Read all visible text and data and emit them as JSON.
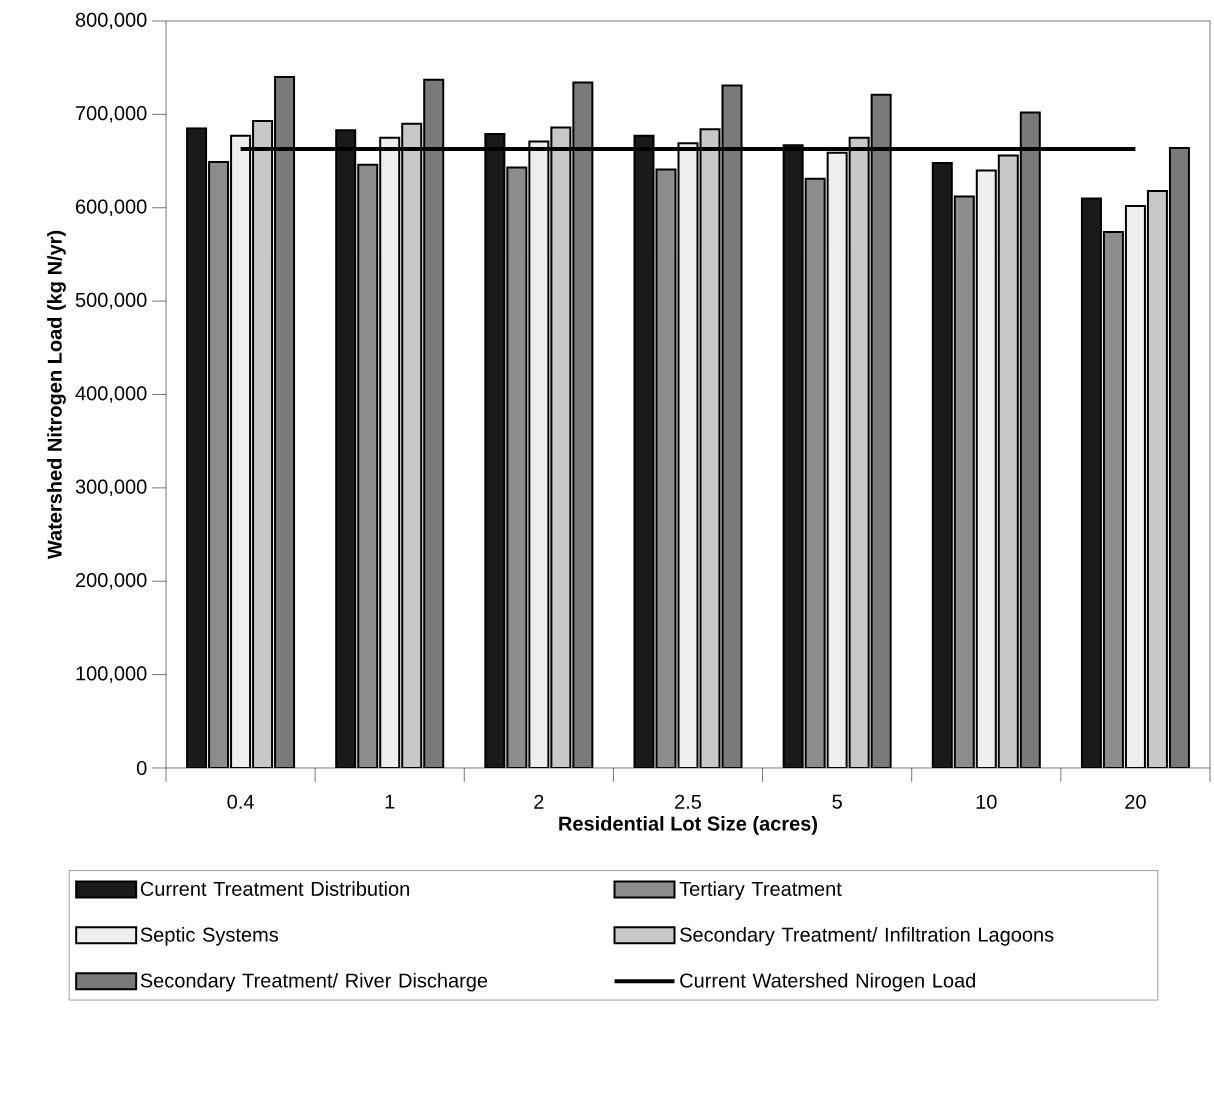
{
  "chart_data": {
    "type": "bar",
    "xlabel": "Residential Lot Size (acres)",
    "ylabel": "Watershed Nitrogen Load (kg N/yr)",
    "categories": [
      "0.4",
      "1",
      "2",
      "2.5",
      "5",
      "10",
      "20"
    ],
    "series": [
      {
        "name": "Current Treatment Distribution",
        "color": "#1a1a1a",
        "values": [
          685000,
          683000,
          679000,
          677000,
          667000,
          648000,
          610000
        ]
      },
      {
        "name": "Tertiary Treatment",
        "color": "#8c8c8c",
        "values": [
          649000,
          646000,
          643000,
          641000,
          631000,
          612000,
          574000
        ]
      },
      {
        "name": "Septic Systems",
        "color": "#eeeeee",
        "values": [
          677000,
          675000,
          671000,
          669000,
          659000,
          640000,
          602000
        ]
      },
      {
        "name": "Secondary Treatment/ Infiltration Lagoons",
        "color": "#c8c8c8",
        "values": [
          693000,
          690000,
          686000,
          684000,
          675000,
          656000,
          618000
        ]
      },
      {
        "name": "Secondary Treatment/ River Discharge",
        "color": "#7a7a7a",
        "values": [
          740000,
          737000,
          734000,
          731000,
          721000,
          702000,
          664000
        ]
      },
      {
        "name": "Current Watershed Nirogen Load",
        "type": "line",
        "color": "#000000",
        "values": [
          663000,
          663000,
          663000,
          663000,
          663000,
          663000,
          663000
        ]
      }
    ],
    "ylim": [
      0,
      800000
    ],
    "yticks": [
      {
        "value": 0,
        "label": "0"
      },
      {
        "value": 100000,
        "label": "100,000"
      },
      {
        "value": 200000,
        "label": "200,000"
      },
      {
        "value": 300000,
        "label": "300,000"
      },
      {
        "value": 400000,
        "label": "400,000"
      },
      {
        "value": 500000,
        "label": "500,000"
      },
      {
        "value": 600000,
        "label": "600,000"
      },
      {
        "value": 700000,
        "label": "700,000"
      },
      {
        "value": 800000,
        "label": "800,000"
      }
    ],
    "grid": false,
    "legend": "bottom",
    "marker": "none"
  }
}
